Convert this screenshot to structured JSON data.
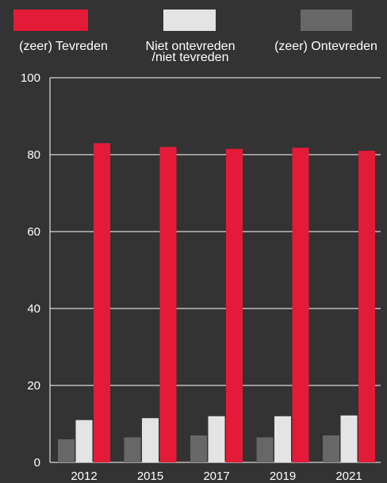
{
  "chart_data": {
    "type": "bar",
    "categories": [
      "2012",
      "2015",
      "2017",
      "2019",
      "2021"
    ],
    "series": [
      {
        "name": "(zeer) Ontevreden",
        "color": "#676767",
        "values": [
          6,
          6.5,
          7,
          6.5,
          7
        ]
      },
      {
        "name": "Niet ontevreden /niet tevreden",
        "color": "#e4e4e4",
        "values": [
          11,
          11.5,
          12,
          12,
          12.2
        ]
      },
      {
        "name": "(zeer) Tevreden",
        "color": "#e31b38",
        "values": [
          83,
          82,
          81.5,
          81.8,
          81
        ]
      }
    ],
    "legend": {
      "placement": "top",
      "items": [
        {
          "label_lines": [
            "(zeer) Tevreden"
          ],
          "color": "#e31b38"
        },
        {
          "label_lines": [
            "Niet ontevreden",
            "/niet tevreden"
          ],
          "color": "#e4e4e4"
        },
        {
          "label_lines": [
            "(zeer) Ontevreden"
          ],
          "color": "#676767"
        }
      ]
    },
    "yticks": [
      "0",
      "20",
      "40",
      "60",
      "80",
      "100"
    ],
    "ylim": [
      0,
      100
    ],
    "grid": "horizontal",
    "title": "",
    "xlabel": "",
    "ylabel": ""
  }
}
